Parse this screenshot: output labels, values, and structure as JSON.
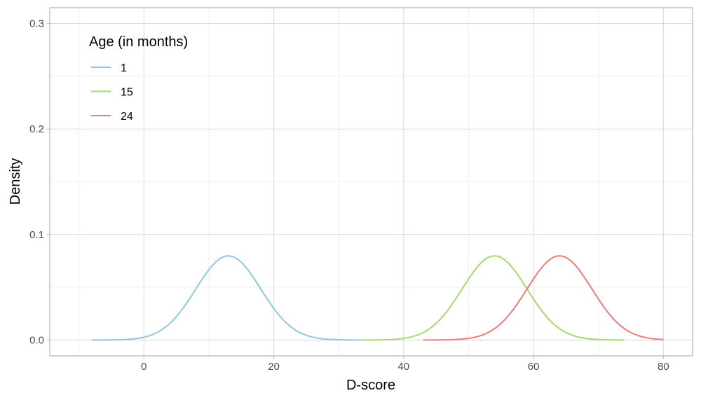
{
  "chart_data": {
    "type": "line",
    "xlabel": "D-score",
    "ylabel": "Density",
    "xlim": [
      -14.5,
      84.5
    ],
    "ylim": [
      -0.015,
      0.315
    ],
    "x_ticks": [
      0,
      20,
      40,
      60,
      80
    ],
    "y_ticks": [
      0.0,
      0.1,
      0.2,
      0.3
    ],
    "x_tick_labels": [
      "0",
      "20",
      "40",
      "60",
      "80"
    ],
    "y_tick_labels": [
      "0.0",
      "0.1",
      "0.2",
      "0.3"
    ],
    "grid": true,
    "legend": {
      "title": "Age (in months)",
      "position": "top-left"
    },
    "series": [
      {
        "name": "1",
        "color": "#92c5de",
        "mean": 13,
        "sd": 5,
        "x_range": [
          -8,
          33
        ]
      },
      {
        "name": "15",
        "color": "#a6d96a",
        "mean": 54,
        "sd": 5,
        "x_range": [
          33,
          74
        ]
      },
      {
        "name": "24",
        "color": "#f4777a",
        "mean": 64,
        "sd": 5,
        "x_range": [
          43,
          80
        ]
      }
    ]
  }
}
